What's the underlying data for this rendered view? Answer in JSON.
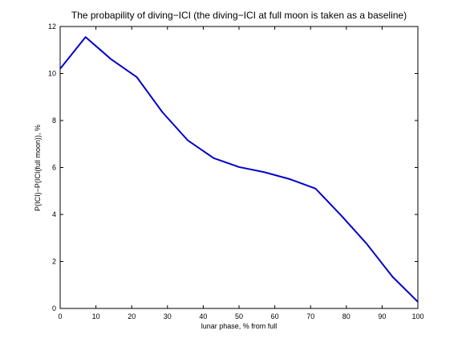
{
  "chart_data": {
    "type": "line",
    "title": "The probapility of diving−ICI (the diving−ICI at full moon is taken as a baseline)",
    "xlabel": "lunar phase, % from full",
    "ylabel": "P(ICI)−P(ICI(full moon)), %",
    "xlim": [
      0,
      100
    ],
    "ylim": [
      0,
      12
    ],
    "xticks": [
      0,
      10,
      20,
      30,
      40,
      50,
      60,
      70,
      80,
      90,
      100
    ],
    "yticks": [
      0,
      2,
      4,
      6,
      8,
      10,
      12
    ],
    "grid": false,
    "legend": "none",
    "series": [
      {
        "color": "#0000cc",
        "x": [
          0,
          7.1,
          14.3,
          21.4,
          28.6,
          35.7,
          42.9,
          50,
          57.1,
          64.3,
          71.4,
          78.6,
          85.7,
          92.9,
          100
        ],
        "y": [
          10.2,
          11.55,
          10.6,
          9.85,
          8.35,
          7.15,
          6.4,
          6.02,
          5.8,
          5.5,
          5.1,
          3.95,
          2.75,
          1.35,
          0.28
        ]
      }
    ]
  }
}
